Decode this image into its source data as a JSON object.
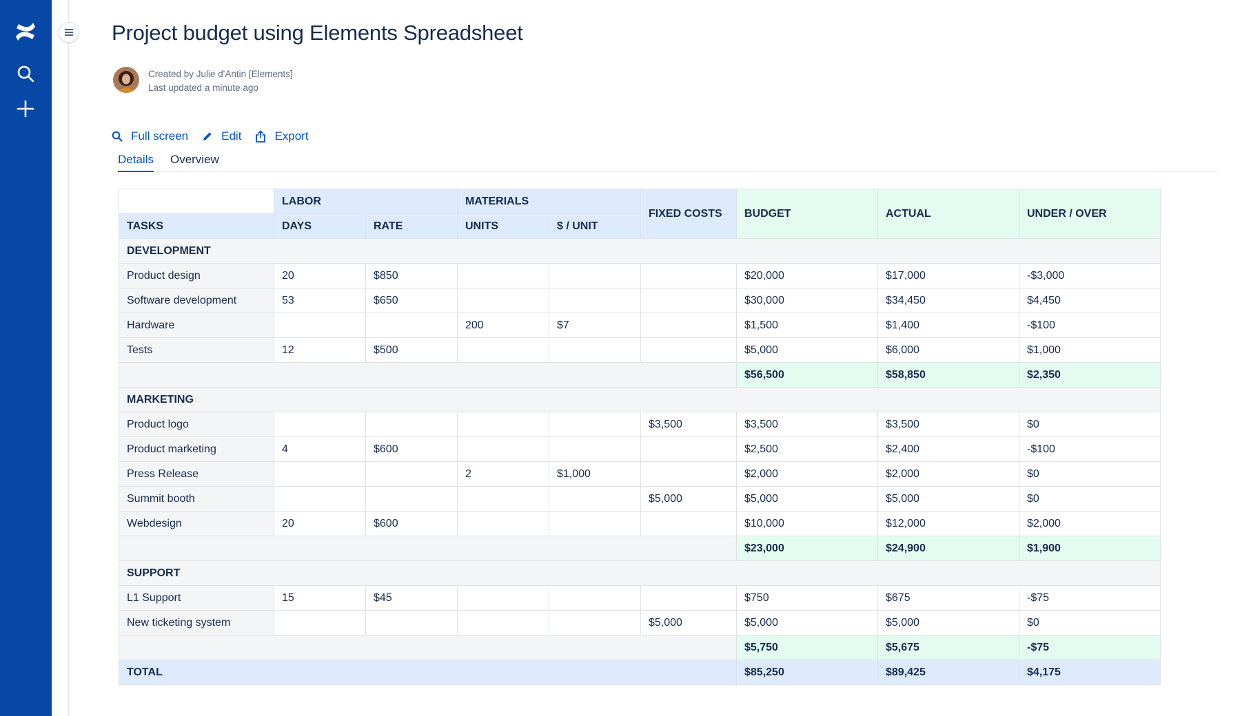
{
  "page": {
    "title": "Project budget using Elements Spreadsheet",
    "created_by": "Created by Julie d'Antin [Elements]",
    "last_updated": "Last updated a minute ago"
  },
  "actions": {
    "full_screen": "Full screen",
    "edit": "Edit",
    "export": "Export"
  },
  "tabs": [
    {
      "label": "Details",
      "active": true
    },
    {
      "label": "Overview",
      "active": false
    }
  ],
  "colors": {
    "rail": "#0747a6",
    "link": "#0052cc",
    "header_blue": "#deebff",
    "header_green": "#e3fcef",
    "section_grey": "#f4f5f7"
  },
  "table": {
    "headers": {
      "labor": "LABOR",
      "materials": "MATERIALS",
      "tasks": "TASKS",
      "days": "DAYS",
      "rate": "RATE",
      "units": "UNITS",
      "per_unit": "$ / UNIT",
      "fixed_costs": "FIXED COSTS",
      "budget": "BUDGET",
      "actual": "ACTUAL",
      "under_over": "UNDER / OVER"
    },
    "sections": [
      {
        "name": "DEVELOPMENT",
        "rows": [
          [
            "Product design",
            "20",
            "$850",
            "",
            "",
            "",
            "$20,000",
            "$17,000",
            "-$3,000"
          ],
          [
            "Software development",
            "53",
            "$650",
            "",
            "",
            "",
            "$30,000",
            "$34,450",
            "$4,450"
          ],
          [
            "Hardware",
            "",
            "",
            "200",
            "$7",
            "",
            "$1,500",
            "$1,400",
            "-$100"
          ],
          [
            "Tests",
            "12",
            "$500",
            "",
            "",
            "",
            "$5,000",
            "$6,000",
            "$1,000"
          ]
        ],
        "subtotal": [
          "$56,500",
          "$58,850",
          "$2,350"
        ]
      },
      {
        "name": "MARKETING",
        "rows": [
          [
            "Product logo",
            "",
            "",
            "",
            "",
            "$3,500",
            "$3,500",
            "$3,500",
            "$0"
          ],
          [
            "Product marketing",
            "4",
            "$600",
            "",
            "",
            "",
            "$2,500",
            "$2,400",
            "-$100"
          ],
          [
            "Press Release",
            "",
            "",
            "2",
            "$1,000",
            "",
            "$2,000",
            "$2,000",
            "$0"
          ],
          [
            "Summit booth",
            "",
            "",
            "",
            "",
            "$5,000",
            "$5,000",
            "$5,000",
            "$0"
          ],
          [
            "Webdesign",
            "20",
            "$600",
            "",
            "",
            "",
            "$10,000",
            "$12,000",
            "$2,000"
          ]
        ],
        "subtotal": [
          "$23,000",
          "$24,900",
          "$1,900"
        ]
      },
      {
        "name": "SUPPORT",
        "rows": [
          [
            "L1 Support",
            "15",
            "$45",
            "",
            "",
            "",
            "$750",
            "$675",
            "-$75"
          ],
          [
            "New ticketing system",
            "",
            "",
            "",
            "",
            "$5,000",
            "$5,000",
            "$5,000",
            "$0"
          ]
        ],
        "subtotal": [
          "$5,750",
          "$5,675",
          "-$75"
        ]
      }
    ],
    "total": {
      "label": "TOTAL",
      "values": [
        "$85,250",
        "$89,425",
        "$4,175"
      ]
    }
  }
}
